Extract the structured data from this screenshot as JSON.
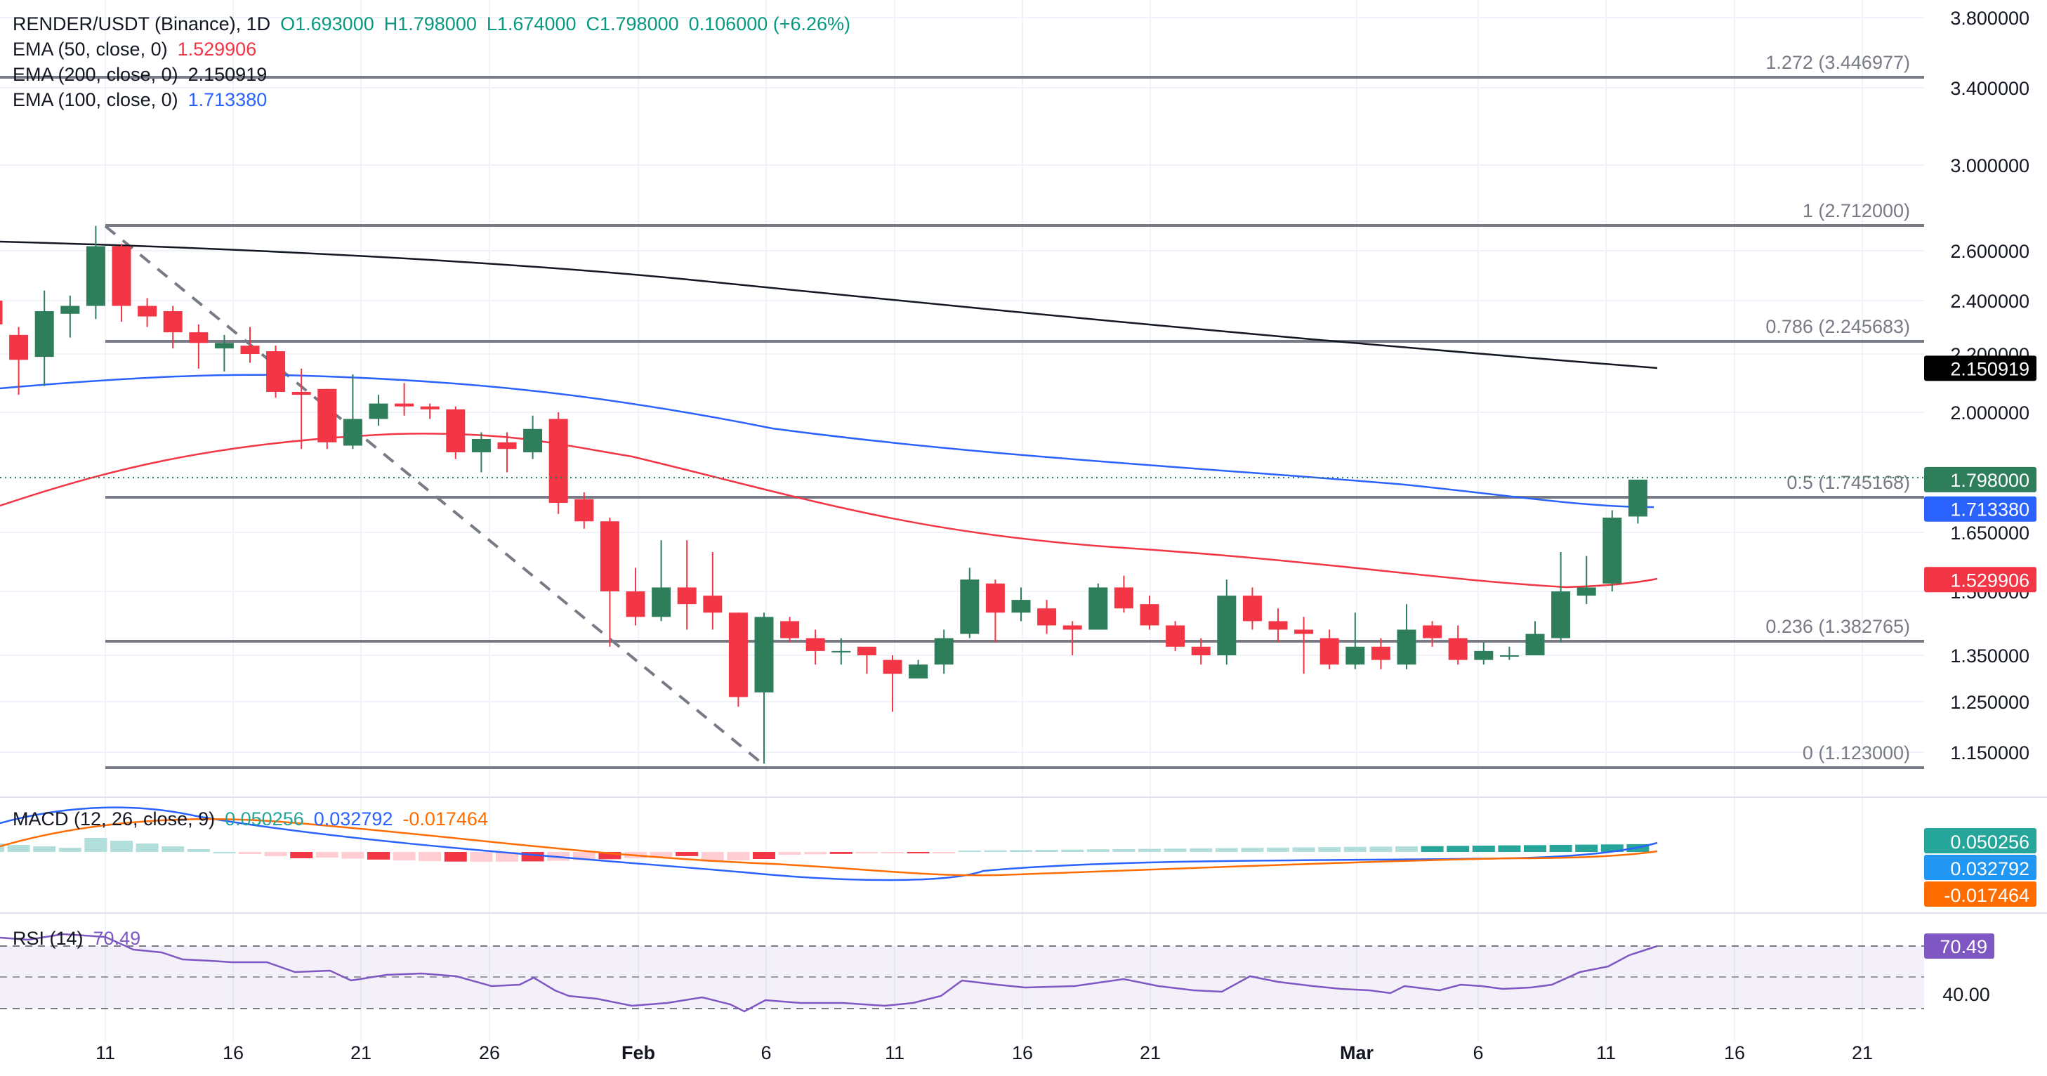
{
  "header": {
    "symbol": "RENDER/USDT (Binance), 1D",
    "open": "O1.693000",
    "high": "H1.798000",
    "low": "L1.674000",
    "close": "C1.798000",
    "change": "0.106000 (+6.26%)"
  },
  "indicators": {
    "ema50": {
      "label": "EMA (50, close, 0)",
      "value": "1.529906",
      "color": "#f23645"
    },
    "ema200": {
      "label": "EMA (200, close, 0)",
      "value": "2.150919",
      "color": "#131722"
    },
    "ema100": {
      "label": "EMA (100, close, 0)",
      "value": "1.713380",
      "color": "#2962ff"
    },
    "macd": {
      "label": "MACD (12, 26, close, 9)",
      "hist": "0.050256",
      "macd": "0.032792",
      "signal": "-0.017464"
    },
    "rsi": {
      "label": "RSI (14)",
      "value": "70.49"
    }
  },
  "colors": {
    "up": "#26a69a",
    "up_body": "#2e7d5b",
    "down": "#f23645",
    "macd_line": "#2962ff",
    "signal_line": "#ff6d00",
    "rsi_line": "#7e57c2",
    "fib": "#787b86"
  },
  "chart_data": {
    "type": "candlestick",
    "price_axis": [
      "3.800000",
      "3.400000",
      "3.000000",
      "2.600000",
      "2.400000",
      "2.200000",
      "2.000000",
      "1.650000",
      "1.500000",
      "1.350000",
      "1.250000",
      "1.150000"
    ],
    "time_axis": [
      "11",
      "16",
      "21",
      "26",
      "Feb",
      "6",
      "11",
      "16",
      "21",
      "Mar",
      "6",
      "11",
      "16",
      "21"
    ],
    "fib_levels": [
      {
        "label": "1.272 (3.446977)",
        "value": 3.446977
      },
      {
        "label": "1 (2.712000)",
        "value": 2.712
      },
      {
        "label": "0.786 (2.245683)",
        "value": 2.245683
      },
      {
        "label": "0.5 (1.745168)",
        "value": 1.745168
      },
      {
        "label": "0.236 (1.382765)",
        "value": 1.382765
      },
      {
        "label": "0 (1.123000)",
        "value": 1.123
      }
    ],
    "price_tags": [
      {
        "text": "2.150919",
        "value": 2.150919,
        "bg": "#000000"
      },
      {
        "text": "1.798000",
        "value": 1.798,
        "bg": "#2e7d5b"
      },
      {
        "text": "1.713380",
        "value": 1.71338,
        "bg": "#2962ff"
      },
      {
        "text": "1.529906",
        "value": 1.529906,
        "bg": "#f23645"
      }
    ],
    "candles": [
      [
        2.4,
        2.31,
        2.45,
        2.22
      ],
      [
        2.27,
        2.18,
        2.3,
        2.06
      ],
      [
        2.19,
        2.36,
        2.44,
        2.09
      ],
      [
        2.35,
        2.38,
        2.42,
        2.26
      ],
      [
        2.38,
        2.62,
        2.71,
        2.33
      ],
      [
        2.62,
        2.38,
        2.63,
        2.32
      ],
      [
        2.38,
        2.34,
        2.41,
        2.3
      ],
      [
        2.36,
        2.28,
        2.38,
        2.22
      ],
      [
        2.28,
        2.24,
        2.31,
        2.15
      ],
      [
        2.22,
        2.24,
        2.27,
        2.14
      ],
      [
        2.23,
        2.2,
        2.3,
        2.17
      ],
      [
        2.21,
        2.07,
        2.23,
        2.05
      ],
      [
        2.07,
        2.06,
        2.15,
        1.89
      ],
      [
        2.08,
        1.91,
        2.08,
        1.89
      ],
      [
        1.9,
        1.98,
        2.13,
        1.89
      ],
      [
        1.98,
        2.03,
        2.06,
        1.96
      ],
      [
        2.03,
        2.02,
        2.1,
        1.99
      ],
      [
        2.02,
        2.01,
        2.03,
        1.98
      ],
      [
        2.01,
        1.88,
        2.02,
        1.86
      ],
      [
        1.88,
        1.92,
        1.94,
        1.82
      ],
      [
        1.91,
        1.89,
        1.94,
        1.82
      ],
      [
        1.88,
        1.95,
        1.99,
        1.86
      ],
      [
        1.98,
        1.73,
        2.0,
        1.7
      ],
      [
        1.74,
        1.68,
        1.76,
        1.66
      ],
      [
        1.68,
        1.5,
        1.69,
        1.37
      ],
      [
        1.5,
        1.44,
        1.56,
        1.42
      ],
      [
        1.44,
        1.51,
        1.63,
        1.43
      ],
      [
        1.51,
        1.47,
        1.63,
        1.41
      ],
      [
        1.49,
        1.45,
        1.6,
        1.41
      ],
      [
        1.45,
        1.26,
        1.45,
        1.24
      ],
      [
        1.27,
        1.44,
        1.45,
        1.13
      ],
      [
        1.43,
        1.39,
        1.44,
        1.38
      ],
      [
        1.39,
        1.36,
        1.41,
        1.33
      ],
      [
        1.36,
        1.36,
        1.39,
        1.33
      ],
      [
        1.37,
        1.35,
        1.37,
        1.31
      ],
      [
        1.34,
        1.31,
        1.35,
        1.23
      ],
      [
        1.3,
        1.33,
        1.34,
        1.3
      ],
      [
        1.33,
        1.39,
        1.41,
        1.31
      ],
      [
        1.4,
        1.53,
        1.56,
        1.39
      ],
      [
        1.52,
        1.45,
        1.53,
        1.38
      ],
      [
        1.45,
        1.48,
        1.51,
        1.43
      ],
      [
        1.46,
        1.42,
        1.48,
        1.4
      ],
      [
        1.42,
        1.41,
        1.43,
        1.35
      ],
      [
        1.41,
        1.51,
        1.52,
        1.41
      ],
      [
        1.51,
        1.46,
        1.54,
        1.45
      ],
      [
        1.47,
        1.42,
        1.49,
        1.41
      ],
      [
        1.42,
        1.37,
        1.43,
        1.36
      ],
      [
        1.37,
        1.35,
        1.39,
        1.33
      ],
      [
        1.35,
        1.49,
        1.53,
        1.33
      ],
      [
        1.49,
        1.43,
        1.51,
        1.41
      ],
      [
        1.43,
        1.41,
        1.46,
        1.38
      ],
      [
        1.41,
        1.4,
        1.44,
        1.31
      ],
      [
        1.39,
        1.33,
        1.41,
        1.32
      ],
      [
        1.33,
        1.37,
        1.45,
        1.32
      ],
      [
        1.37,
        1.34,
        1.39,
        1.32
      ],
      [
        1.33,
        1.41,
        1.47,
        1.32
      ],
      [
        1.42,
        1.39,
        1.43,
        1.37
      ],
      [
        1.39,
        1.34,
        1.42,
        1.33
      ],
      [
        1.34,
        1.36,
        1.38,
        1.33
      ],
      [
        1.35,
        1.35,
        1.37,
        1.34
      ],
      [
        1.35,
        1.4,
        1.43,
        1.35
      ],
      [
        1.39,
        1.5,
        1.6,
        1.38
      ],
      [
        1.49,
        1.51,
        1.59,
        1.47
      ],
      [
        1.52,
        1.69,
        1.71,
        1.5
      ],
      [
        1.693,
        1.798,
        1.798,
        1.674
      ]
    ]
  }
}
